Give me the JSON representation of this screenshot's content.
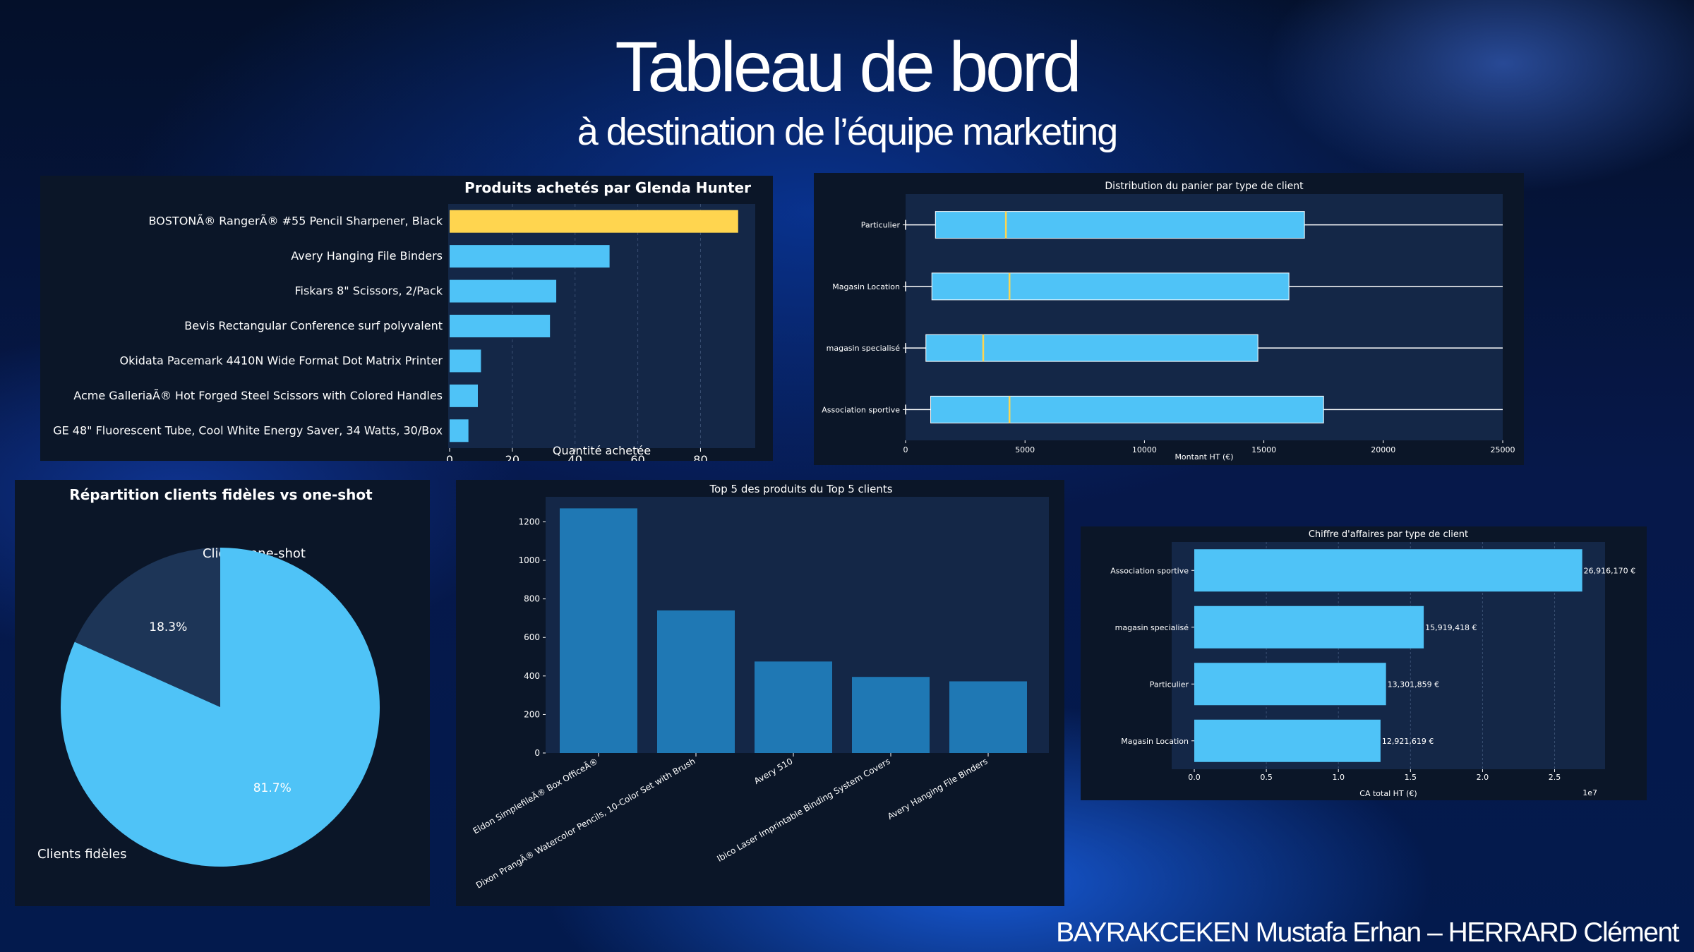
{
  "header": {
    "title": "Tableau de bord",
    "subtitle": "à destination de l’équipe marketing"
  },
  "footer": {
    "authors": "BAYRAKCEKEN Mustafa Erhan – HERRARD Clément"
  },
  "colors": {
    "bar": "#4fc3f7",
    "highlight": "#ffd54f",
    "dark_bar": "#1f78b4",
    "panel_bg": "#0b1628",
    "plot_bg": "#142747",
    "pie_dark": "#1d3557"
  },
  "chart_data": [
    {
      "type": "bar",
      "orientation": "horizontal",
      "title": "Produits achetés par Glenda Hunter",
      "xlabel": "Quantité achetée",
      "categories": [
        "BOSTONÃ® RangerÃ® #55 Pencil Sharpener, Black",
        "Avery Hanging File Binders",
        "Fiskars 8\" Scissors, 2/Pack",
        "Bevis Rectangular Conference surf polyvalent",
        "Okidata Pacemark 4410N Wide Format Dot Matrix Printer",
        "Acme GalleriaÃ® Hot Forged Steel Scissors with Colored Handles",
        "GE 48\" Fluorescent Tube, Cool White Energy Saver, 34 Watts, 30/Box"
      ],
      "values": [
        92,
        51,
        34,
        32,
        10,
        9,
        6
      ],
      "highlight_index": 0,
      "xlim": [
        0,
        97
      ],
      "xticks": [
        "0",
        "20",
        "40",
        "60",
        "80"
      ],
      "grid": true
    },
    {
      "type": "boxplot",
      "orientation": "horizontal",
      "title": "Distribution du panier par type de client",
      "xlabel": "Montant HT (€)",
      "categories": [
        "Particulier",
        "Magasin Location",
        "magasin specialisé",
        "Association sportive"
      ],
      "boxes": [
        {
          "min": 0,
          "q1": 1250,
          "median": 4200,
          "q3": 16700,
          "max": 25000
        },
        {
          "min": 0,
          "q1": 1100,
          "median": 4350,
          "q3": 16050,
          "max": 25000
        },
        {
          "min": 0,
          "q1": 850,
          "median": 3250,
          "q3": 14750,
          "max": 25000
        },
        {
          "min": 0,
          "q1": 1050,
          "median": 4350,
          "q3": 17500,
          "max": 25000
        }
      ],
      "xlim": [
        0,
        25000
      ],
      "xticks": [
        "0",
        "5000",
        "10000",
        "15000",
        "20000",
        "25000"
      ]
    },
    {
      "type": "pie",
      "title": "Répartition clients fidèles vs one-shot",
      "labels": [
        "Clients one-shot",
        "Clients fidèles"
      ],
      "values": [
        18.3,
        81.7
      ],
      "value_labels": [
        "18.3%",
        "81.7%"
      ]
    },
    {
      "type": "bar",
      "title": "Top 5 des produits du Top 5 clients",
      "categories": [
        "Eldon SimplefileÃ® Box OfficeÃ®",
        "Dixon PrangÃ® Watercolor Pencils, 10-Color Set with Brush",
        "Avery 510",
        "Ibico Laser Imprintable Binding System Covers",
        "Avery Hanging File Binders"
      ],
      "values": [
        1270,
        740,
        475,
        395,
        372
      ],
      "ylim": [
        0,
        1330
      ],
      "yticks": [
        "0",
        "200",
        "400",
        "600",
        "800",
        "1000",
        "1200"
      ]
    },
    {
      "type": "bar",
      "orientation": "horizontal",
      "title": "Chiffre d'affaires par type de client",
      "xlabel": "CA total HT (€)",
      "scale_note": "1e7",
      "categories": [
        "Association sportive",
        "magasin specialisé",
        "Particulier",
        "Magasin Location"
      ],
      "values": [
        26916170,
        15919418,
        13301859,
        12921619
      ],
      "value_labels": [
        "26,916,170 €",
        "15,919,418 €",
        "13,301,859 €",
        "12,921,619 €"
      ],
      "xlim": [
        0,
        28500000
      ],
      "xticks": [
        "0.0",
        "0.5",
        "1.0",
        "1.5",
        "2.0",
        "2.5"
      ]
    }
  ]
}
